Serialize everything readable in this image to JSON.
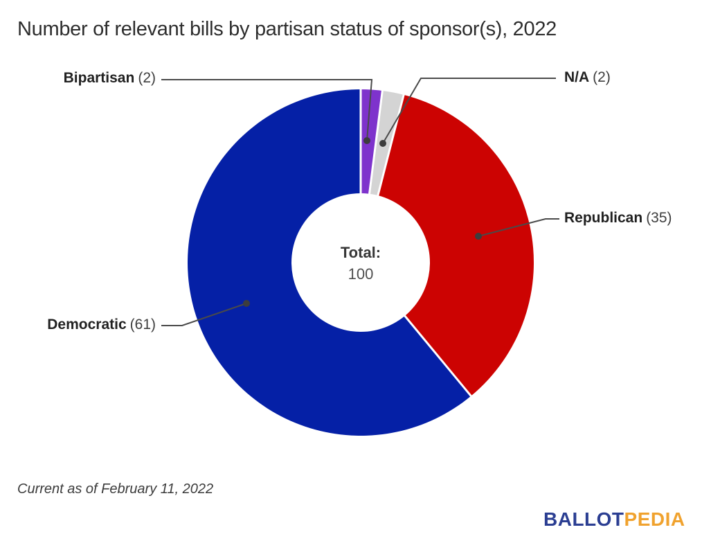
{
  "title": "Number of relevant bills by partisan status of sponsor(s), 2022",
  "footnote": "Current as of February 11, 2022",
  "center_label": {
    "title": "Total:",
    "value": "100"
  },
  "logo": {
    "part1": "BALLOT",
    "part2": "PEDIA",
    "color_left": "#2b3e92",
    "color_right": "#f0a22e"
  },
  "chart_data": {
    "type": "pie",
    "subtype": "donut",
    "title": "Number of relevant bills by partisan status of sponsor(s), 2022",
    "total": 100,
    "start_angle_deg": 0,
    "direction": "clockwise",
    "donut_hole_ratio": 0.4,
    "legend_position": "callout-labels",
    "grid": false,
    "slices": [
      {
        "label": "Bipartisan",
        "value": 2,
        "count_display": "(2)",
        "color": "#7e33cc"
      },
      {
        "label": "N/A",
        "value": 2,
        "count_display": "(2)",
        "color": "#d4d4d4"
      },
      {
        "label": "Republican",
        "value": 35,
        "count_display": "(35)",
        "color": "#cc0302"
      },
      {
        "label": "Democratic",
        "value": 61,
        "count_display": "(61)",
        "color": "#0520a6"
      }
    ],
    "colors": {
      "connector_line": "#4a4a4a",
      "connector_dot": "#3d3d3d",
      "separator": "#ffffff"
    }
  }
}
